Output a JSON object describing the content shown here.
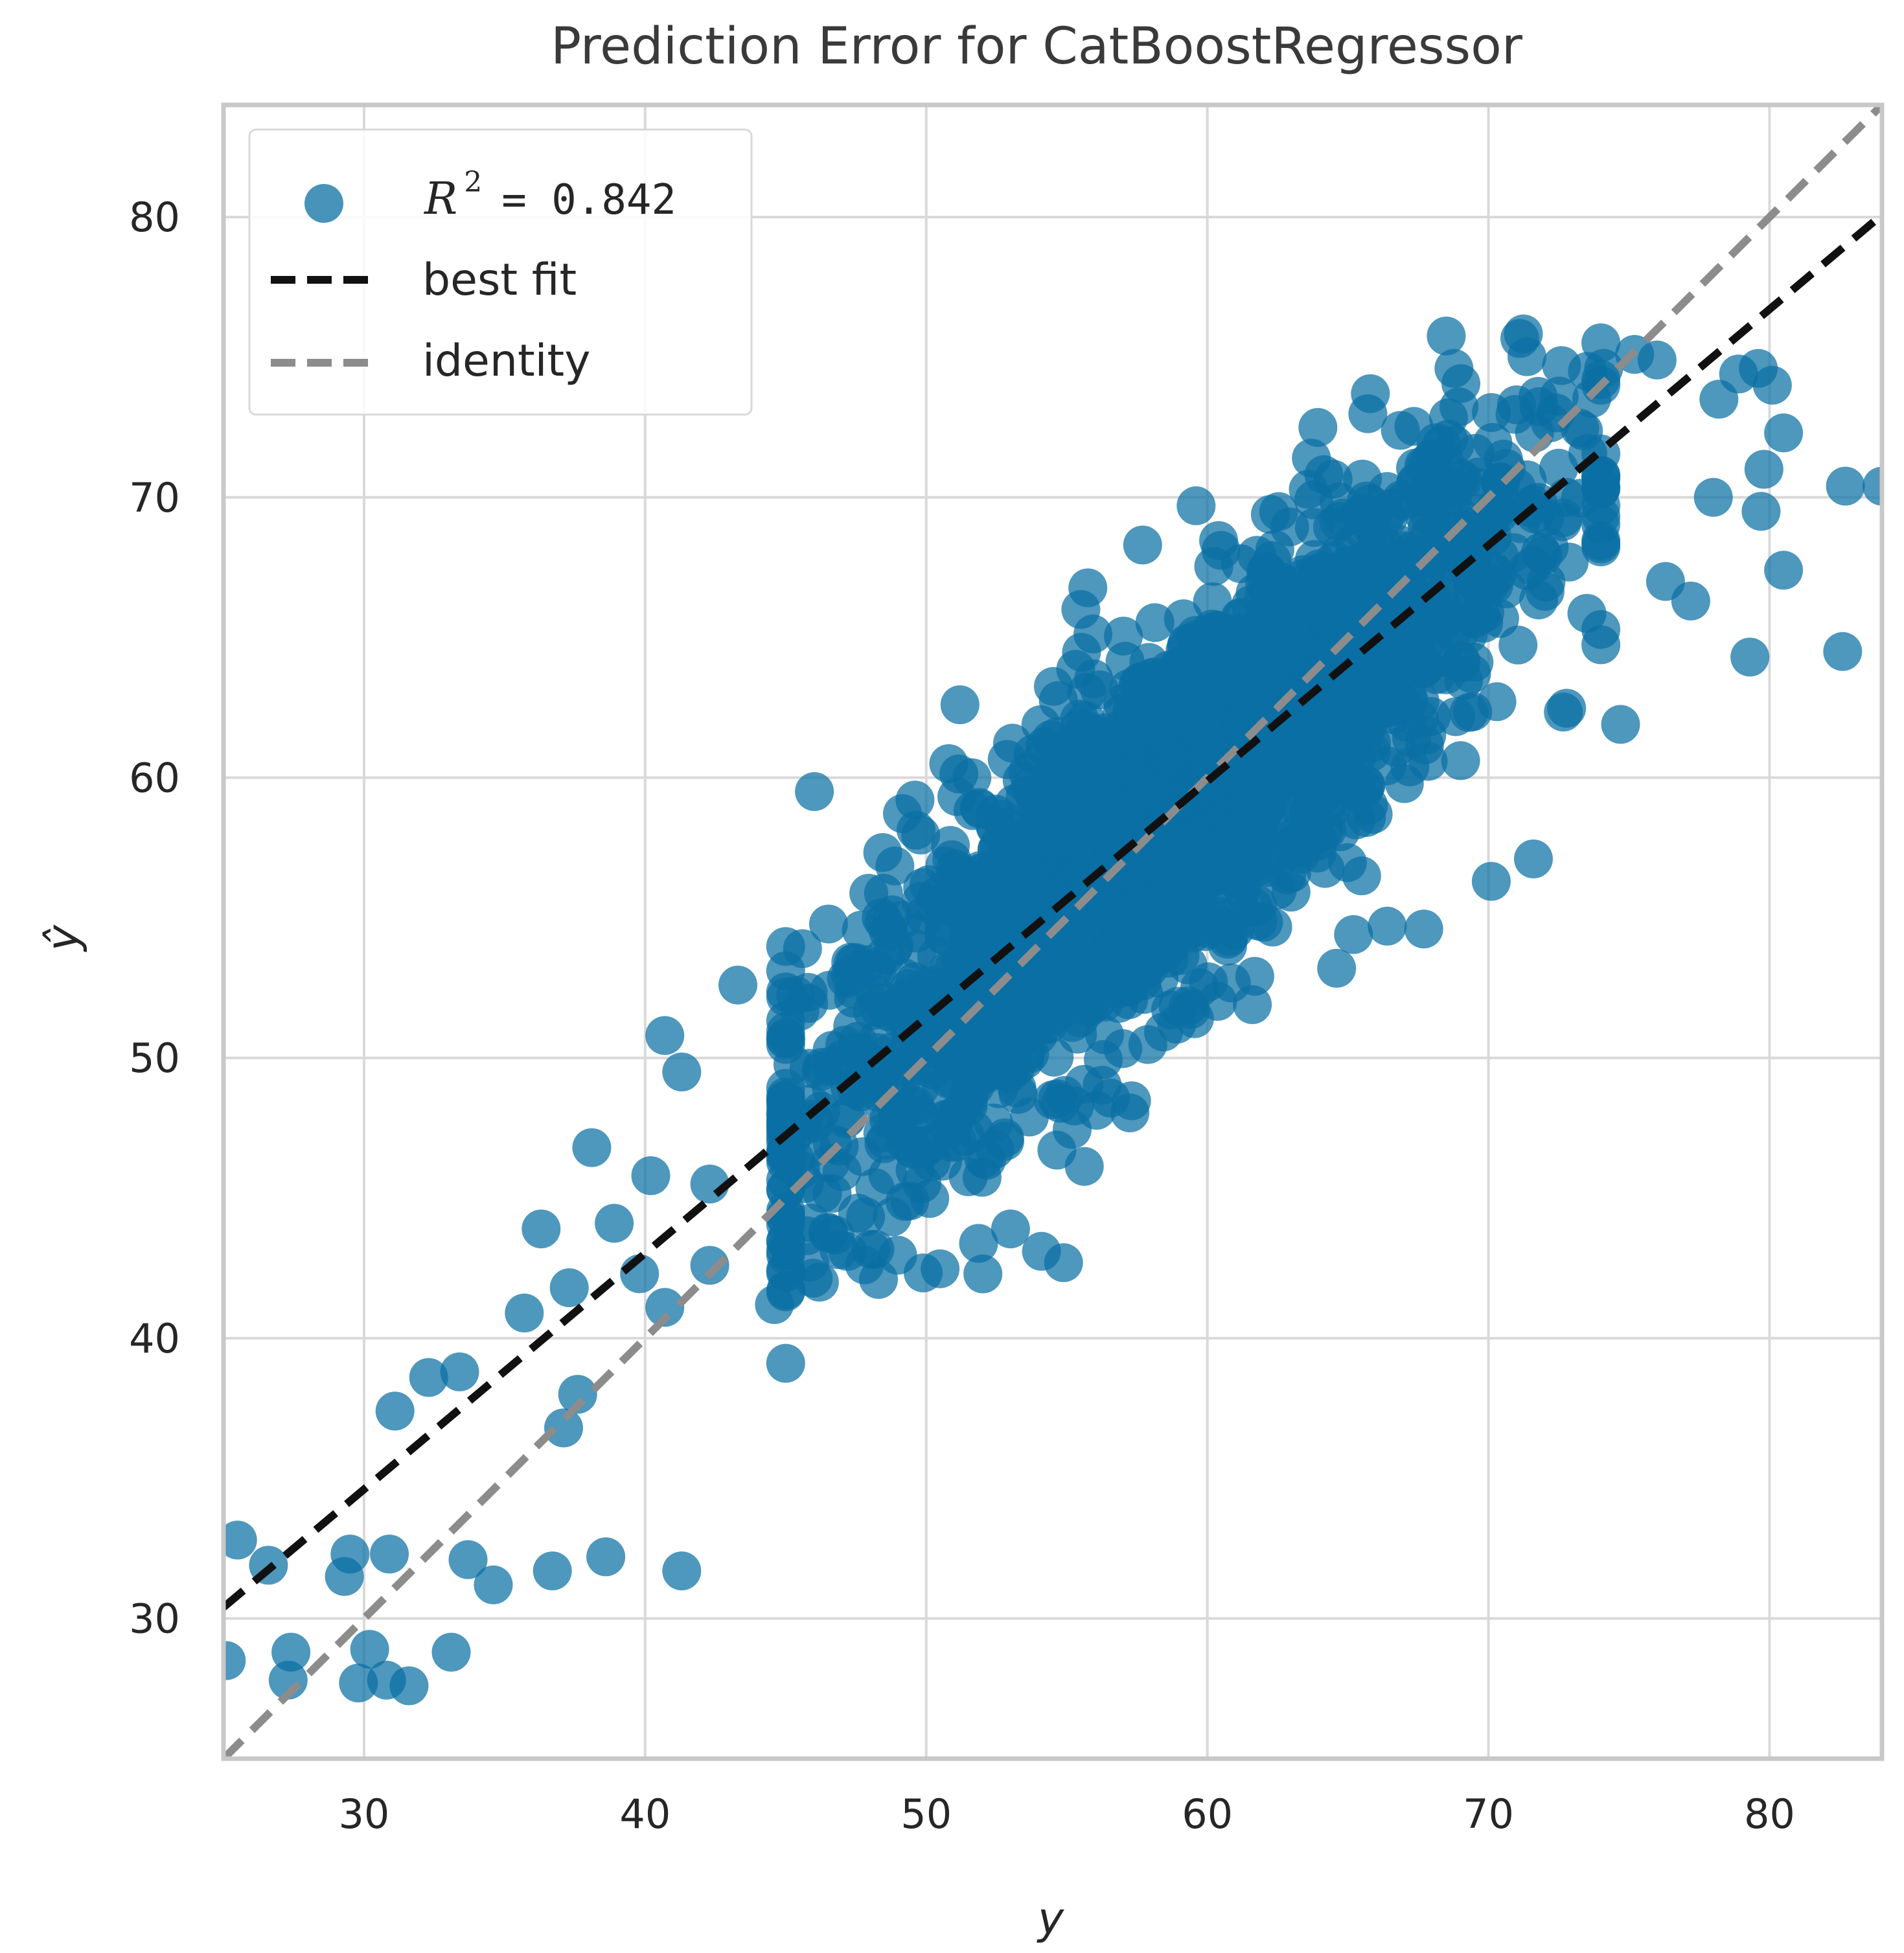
{
  "chart_data": {
    "type": "scatter",
    "title": "Prediction Error for CatBoostRegressor",
    "xlabel": "y",
    "ylabel": "ŷ",
    "xlim": [
      25,
      84
    ],
    "ylim": [
      25,
      84
    ],
    "xticks": [
      30,
      40,
      50,
      60,
      70,
      80
    ],
    "yticks": [
      30,
      40,
      50,
      60,
      70,
      80
    ],
    "xtick_labels": [
      "30",
      "40",
      "50",
      "60",
      "70",
      "80"
    ],
    "ytick_labels": [
      "30",
      "40",
      "50",
      "60",
      "70",
      "80"
    ],
    "grid": true,
    "legend_position": "top-left",
    "legend": {
      "r2_symbol": "R",
      "r2_exponent": "2",
      "r2_value": "= 0.842",
      "best_fit_label": "best fit",
      "identity_label": "identity"
    },
    "colors": {
      "points": "#0a6fa3",
      "best_fit": "#111111",
      "identity": "#8c8c8c",
      "grid": "#d9d9d9",
      "frame": "#c8c8c8"
    },
    "r2": 0.842,
    "best_fit": {
      "slope": 0.842,
      "intercept": 9.35
    },
    "identity": {
      "slope": 1,
      "intercept": 0
    },
    "cluster": {
      "description_values": "dense elliptical cloud along the fit line",
      "x_mean": 58.5,
      "y_mean": 58.6,
      "x_sd": 6.3,
      "resid_sd": 3.2,
      "n": 2200
    },
    "outliers": [
      [
        25.1,
        28.5
      ],
      [
        25.5,
        32.8
      ],
      [
        26.6,
        31.9
      ],
      [
        27.3,
        27.8
      ],
      [
        27.4,
        28.8
      ],
      [
        29.3,
        31.5
      ],
      [
        29.5,
        32.3
      ],
      [
        29.8,
        27.7
      ],
      [
        30.2,
        28.9
      ],
      [
        30.8,
        27.8
      ],
      [
        30.9,
        32.3
      ],
      [
        31.1,
        37.4
      ],
      [
        31.6,
        27.6
      ],
      [
        32.3,
        38.6
      ],
      [
        33.1,
        28.8
      ],
      [
        33.4,
        38.8
      ],
      [
        33.7,
        32.1
      ],
      [
        34.6,
        31.2
      ],
      [
        35.7,
        40.9
      ],
      [
        36.3,
        43.9
      ],
      [
        36.7,
        31.7
      ],
      [
        37.1,
        36.8
      ],
      [
        37.3,
        41.8
      ],
      [
        37.6,
        38.0
      ],
      [
        38.1,
        46.8
      ],
      [
        38.6,
        32.2
      ],
      [
        38.9,
        44.1
      ],
      [
        39.8,
        42.3
      ],
      [
        40.2,
        45.8
      ],
      [
        40.7,
        41.1
      ],
      [
        40.7,
        50.8
      ],
      [
        41.3,
        31.7
      ],
      [
        41.3,
        49.5
      ],
      [
        42.3,
        42.6
      ],
      [
        42.3,
        45.5
      ],
      [
        43.3,
        52.6
      ],
      [
        44.6,
        41.2
      ],
      [
        45.6,
        53.9
      ],
      [
        46.2,
        42.0
      ],
      [
        47.2,
        43.1
      ],
      [
        48.3,
        42.1
      ],
      [
        48.4,
        55.0
      ],
      [
        49.6,
        59.2
      ],
      [
        50.8,
        60.5
      ],
      [
        51.2,
        62.6
      ],
      [
        53.0,
        43.9
      ],
      [
        54.1,
        43.1
      ],
      [
        55.5,
        66.0
      ],
      [
        57.7,
        68.3
      ],
      [
        59.6,
        69.7
      ],
      [
        61.6,
        51.9
      ],
      [
        63.7,
        71.4
      ],
      [
        64.6,
        53.2
      ],
      [
        65.2,
        54.4
      ],
      [
        65.8,
        73.7
      ],
      [
        66.4,
        54.7
      ],
      [
        67.7,
        54.6
      ],
      [
        70.1,
        56.3
      ],
      [
        71.0,
        73.3
      ],
      [
        71.6,
        57.1
      ],
      [
        72.6,
        74.7
      ],
      [
        74.1,
        74.6
      ],
      [
        74.7,
        61.9
      ],
      [
        75.2,
        75.1
      ],
      [
        76.0,
        74.9
      ],
      [
        76.3,
        67.0
      ],
      [
        77.2,
        66.3
      ],
      [
        78.0,
        70.0
      ],
      [
        78.2,
        73.5
      ],
      [
        78.9,
        74.4
      ],
      [
        79.3,
        64.3
      ],
      [
        79.6,
        74.6
      ],
      [
        79.7,
        69.5
      ],
      [
        79.8,
        71.0
      ],
      [
        80.1,
        74.0
      ],
      [
        80.5,
        67.4
      ],
      [
        80.5,
        72.3
      ],
      [
        82.6,
        64.5
      ],
      [
        82.7,
        70.4
      ],
      [
        84.0,
        70.4
      ]
    ]
  }
}
